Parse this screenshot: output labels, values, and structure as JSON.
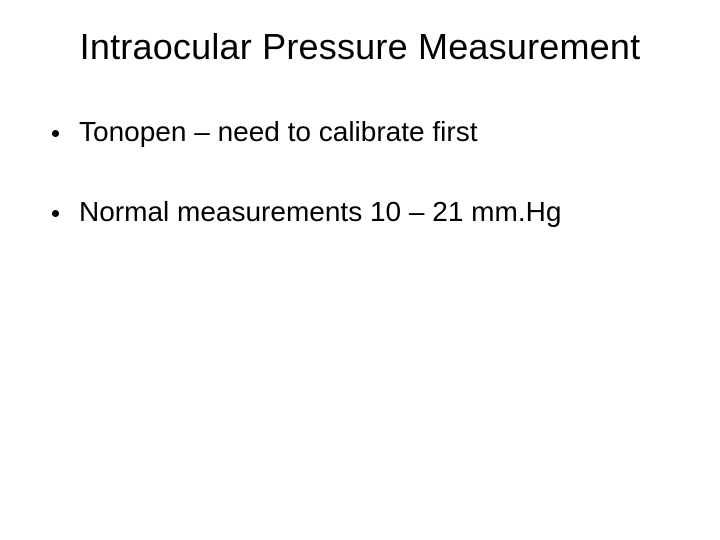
{
  "slide": {
    "title": "Intraocular Pressure Measurement",
    "bullets": [
      {
        "text": "Tonopen – need to calibrate first"
      },
      {
        "text": "Normal measurements 10 – 21 mm.Hg"
      }
    ],
    "background_color": "#ffffff",
    "text_color": "#000000",
    "title_fontsize": 36,
    "bullet_fontsize": 28,
    "font_family": "Arial"
  }
}
